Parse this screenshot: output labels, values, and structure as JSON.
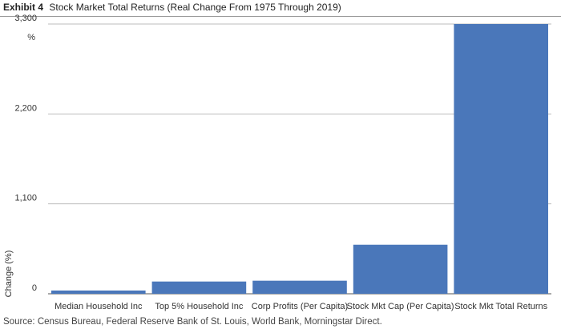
{
  "exhibit_label": "Exhibit 4",
  "source": "Source: Census Bureau, Federal Reserve Bank of St. Louis, World Bank, Morningstar Direct.",
  "colors": {
    "bar": "#4a77ba",
    "grid": "#bdbdbd",
    "axis": "#555555",
    "text": "#333333"
  },
  "chart_data": {
    "type": "bar",
    "title": "Stock Market Total Returns (Real Change From 1975 Through 2019)",
    "xlabel": "",
    "ylabel": "Change (%)",
    "y_unit": "%",
    "ylim": [
      0,
      3300
    ],
    "yticks": [
      0,
      1100,
      2200,
      3300
    ],
    "ytick_labels": [
      "0",
      "1,100",
      "2,200",
      "3,300"
    ],
    "grid": true,
    "categories": [
      "Median Household Inc",
      "Top 5% Household Inc",
      "Corp Profits (Per Capita)",
      "Stock Mkt Cap (Per Capita)",
      "Stock Mkt Total Returns"
    ],
    "values": [
      40,
      150,
      160,
      600,
      3320
    ]
  }
}
